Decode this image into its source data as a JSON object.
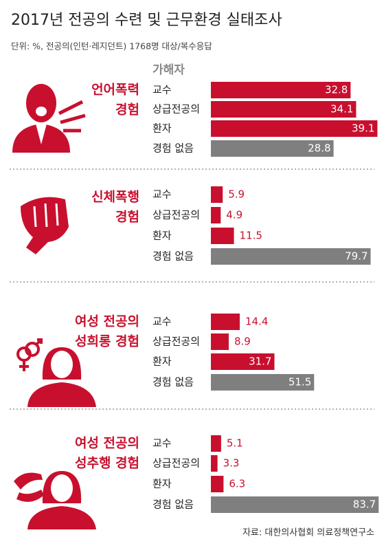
{
  "title": "2017년 전공의 수련 및 근무환경 실태조사",
  "subtitle": "단위: %, 전공의(인턴·레지던트) 1768명 대상/복수응답",
  "header": "가해자",
  "source": "자료: 대한의사협회 의료정책연구소",
  "chart_data": [
    {
      "type": "bar",
      "label_lines": [
        "언어폭력",
        "경험"
      ],
      "categories": [
        "교수",
        "상급전공의",
        "환자",
        "경험 없음"
      ],
      "values": [
        32.8,
        34.1,
        39.1,
        28.8
      ],
      "xlim": [
        0,
        40
      ],
      "colors": [
        "#c8102e",
        "#c8102e",
        "#c8102e",
        "#7f7f7f"
      ]
    },
    {
      "type": "bar",
      "label_lines": [
        "신체폭행",
        "경험"
      ],
      "categories": [
        "교수",
        "상급전공의",
        "환자",
        "경험 없음"
      ],
      "values": [
        5.9,
        4.9,
        11.5,
        79.7
      ],
      "xlim": [
        0,
        85
      ],
      "colors": [
        "#c8102e",
        "#c8102e",
        "#c8102e",
        "#7f7f7f"
      ]
    },
    {
      "type": "bar",
      "label_lines": [
        "여성 전공의",
        "성희롱 경험"
      ],
      "categories": [
        "교수",
        "상급전공의",
        "환자",
        "경험 없음"
      ],
      "values": [
        14.4,
        8.9,
        31.7,
        51.5
      ],
      "xlim": [
        0,
        85
      ],
      "colors": [
        "#c8102e",
        "#c8102e",
        "#c8102e",
        "#7f7f7f"
      ]
    },
    {
      "type": "bar",
      "label_lines": [
        "여성 전공의",
        "성추행 경험"
      ],
      "categories": [
        "교수",
        "상급전공의",
        "환자",
        "경험 없음"
      ],
      "values": [
        5.1,
        3.3,
        6.3,
        83.7
      ],
      "xlim": [
        0,
        85
      ],
      "colors": [
        "#c8102e",
        "#c8102e",
        "#c8102e",
        "#7f7f7f"
      ]
    }
  ]
}
